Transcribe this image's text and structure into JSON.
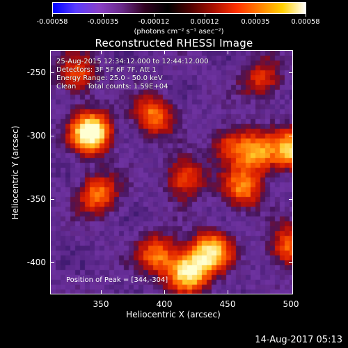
{
  "colorbar": {
    "tick_labels": [
      "-0.00058",
      "-0.00035",
      "-0.00012",
      "0.00012",
      "0.00035",
      "0.00058"
    ],
    "units": "(photons cm⁻² s⁻¹ asec⁻²)",
    "colors": [
      "#0000ff",
      "#5a3cff",
      "#8a40c8",
      "#6a2a8a",
      "#300020",
      "#000000",
      "#500000",
      "#aa1000",
      "#ff3000",
      "#ff8000",
      "#ffd000",
      "#ffffff"
    ]
  },
  "plot": {
    "title": "Reconstructed RHESSI Image",
    "info": {
      "time_range": "25-Aug-2015 12:34:12.000 to 12:44:12.000",
      "detectors": "Detectors: 3F 5F 6F 7F, Att 1",
      "energy": "Energy Range: 25.0 - 50.0 keV",
      "method": "Clean     Total counts: 1.59E+04"
    },
    "peak_label": "Position of Peak = [344,-304]"
  },
  "axes": {
    "xlabel": "Heliocentric X (arcsec)",
    "ylabel": "Heliocentric Y (arcsec)",
    "x_ticks": [
      "350",
      "400",
      "450",
      "500"
    ],
    "y_ticks": [
      "-250",
      "-300",
      "-350",
      "-400"
    ]
  },
  "footer": {
    "timestamp": "14-Aug-2017 05:13"
  },
  "chart_data": {
    "type": "heatmap",
    "title": "Reconstructed RHESSI Image",
    "xlabel": "Heliocentric X (arcsec)",
    "ylabel": "Heliocentric Y (arcsec)",
    "xlim": [
      313,
      500
    ],
    "ylim": [
      -433,
      -239
    ],
    "colorscale_range": [
      -0.00058,
      0.00058
    ],
    "peak_position": [
      344,
      -304
    ],
    "bright_sources": [
      {
        "x": 344,
        "y": -304,
        "level": 1.0
      },
      {
        "x": 419,
        "y": -415,
        "level": 0.85
      },
      {
        "x": 437,
        "y": -398,
        "level": 0.75
      },
      {
        "x": 392,
        "y": -290,
        "level": 0.55
      },
      {
        "x": 416,
        "y": -340,
        "level": 0.5
      },
      {
        "x": 500,
        "y": -318,
        "level": 0.75
      },
      {
        "x": 472,
        "y": -320,
        "level": 0.6
      },
      {
        "x": 461,
        "y": -348,
        "level": 0.55
      },
      {
        "x": 395,
        "y": -401,
        "level": 0.55
      },
      {
        "x": 349,
        "y": -353,
        "level": 0.55
      },
      {
        "x": 497,
        "y": -395,
        "level": 0.55
      },
      {
        "x": 333,
        "y": -258,
        "level": 0.45
      },
      {
        "x": 451,
        "y": -313,
        "level": 0.4
      },
      {
        "x": 476,
        "y": -262,
        "level": 0.4
      }
    ]
  }
}
